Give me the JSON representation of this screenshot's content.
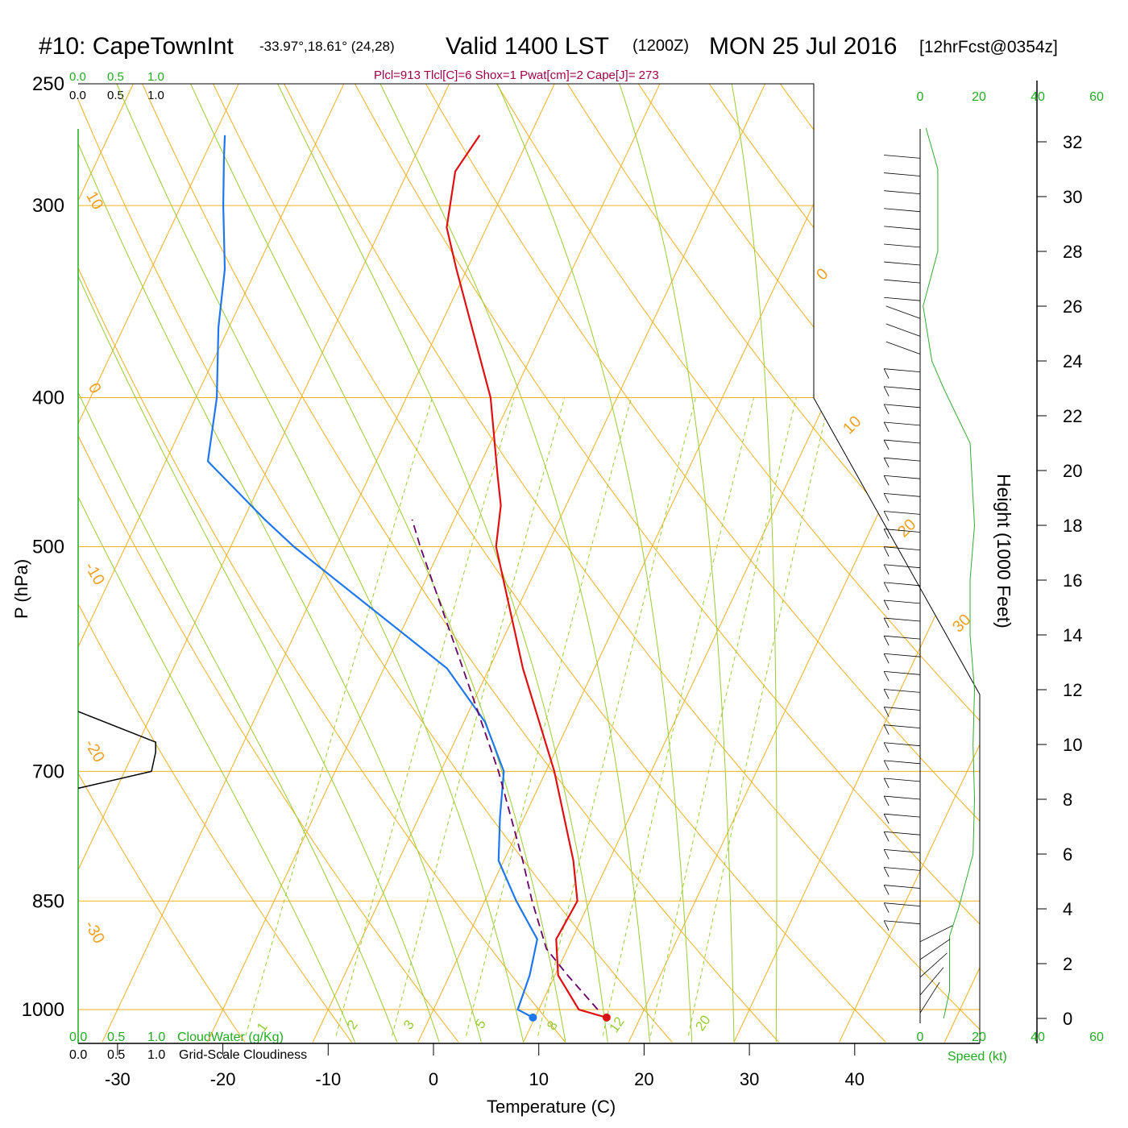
{
  "header": {
    "station": "#10: CapeTownInt",
    "coords": "-33.97°,18.61° (24,28)",
    "valid": "Valid 1400 LST",
    "zulu": "(1200Z)",
    "date": "MON 25 Jul 2016",
    "fcst": "[12hrFcst@0354z]"
  },
  "params": "Plcl=913 Tlcl[C]=6 Shox=1 Pwat[cm]=2 Cape[J]= 273",
  "left_scale": {
    "top_green": [
      "0.0",
      "0.5",
      "1.0"
    ],
    "top_black": [
      "0.0",
      "0.5",
      "1.0"
    ],
    "bottom_green": [
      "0.0",
      "0.5",
      "1.0"
    ],
    "bottom_black": [
      "0.0",
      "0.5",
      "1.0"
    ],
    "cloudwater_label": "CloudWater (g/Kg)",
    "cloudiness_label": "Grid-Scale Cloudiness"
  },
  "speed_scale": {
    "ticks": [
      "0",
      "20",
      "40",
      "60"
    ],
    "label": "Speed (kt)"
  },
  "colors": {
    "isobar": "#f0b020",
    "isotherm": "#f0b020",
    "dry_adiabat": "#f0b020",
    "moist_adiabat": "#99cc33",
    "mixing_ratio": "#99cc33",
    "temperature": "#dd1111",
    "dewpoint": "#1f77ee",
    "parcel": "#660066",
    "speed": "#33aa33"
  },
  "chart_data": {
    "type": "skew-t",
    "xlabel": "Temperature (C)",
    "ylabel": "P (hPa)",
    "y2label": "Height (1000 Feet)",
    "x_ticks": [
      -30,
      -20,
      -10,
      0,
      10,
      20,
      30,
      40
    ],
    "pressure_ticks": [
      250,
      300,
      400,
      500,
      700,
      850,
      1000
    ],
    "height_ticks": [
      0,
      2,
      4,
      6,
      8,
      10,
      12,
      14,
      16,
      18,
      20,
      22,
      24,
      26,
      28,
      30,
      32
    ],
    "isotherm_labels": [
      "10",
      "0",
      "-10",
      "-20",
      "-30",
      "0",
      "10",
      "20",
      "30"
    ],
    "mixing_ratio_labels": [
      "1",
      "2",
      "3",
      "5",
      "8",
      "12",
      "20"
    ],
    "temperature_profile": [
      {
        "p": 1012,
        "t": 16.8
      },
      {
        "p": 1000,
        "t": 13.8
      },
      {
        "p": 950,
        "t": 10.3
      },
      {
        "p": 900,
        "t": 8.5
      },
      {
        "p": 850,
        "t": 8.8
      },
      {
        "p": 800,
        "t": 6.6
      },
      {
        "p": 700,
        "t": 0.8
      },
      {
        "p": 600,
        "t": -6.8
      },
      {
        "p": 500,
        "t": -14.8
      },
      {
        "p": 470,
        "t": -16.2
      },
      {
        "p": 450,
        "t": -17.8
      },
      {
        "p": 400,
        "t": -22.0
      },
      {
        "p": 330,
        "t": -31.0
      },
      {
        "p": 310,
        "t": -33.8
      },
      {
        "p": 285,
        "t": -35.5
      },
      {
        "p": 270,
        "t": -34.8
      }
    ],
    "dewpoint_profile": [
      {
        "p": 1012,
        "t": 9.8
      },
      {
        "p": 1000,
        "t": 8.0
      },
      {
        "p": 950,
        "t": 7.6
      },
      {
        "p": 900,
        "t": 6.7
      },
      {
        "p": 850,
        "t": 3.0
      },
      {
        "p": 800,
        "t": -0.5
      },
      {
        "p": 750,
        "t": -2.3
      },
      {
        "p": 700,
        "t": -4.0
      },
      {
        "p": 650,
        "t": -8.0
      },
      {
        "p": 600,
        "t": -14.0
      },
      {
        "p": 500,
        "t": -34.0
      },
      {
        "p": 480,
        "t": -38.0
      },
      {
        "p": 440,
        "t": -46.0
      },
      {
        "p": 400,
        "t": -48.0
      },
      {
        "p": 360,
        "t": -51.0
      },
      {
        "p": 330,
        "t": -53.0
      },
      {
        "p": 300,
        "t": -56.0
      },
      {
        "p": 280,
        "t": -58.0
      },
      {
        "p": 270,
        "t": -59.0
      }
    ],
    "parcel_profile": [
      {
        "p": 1000,
        "t": 15.6
      },
      {
        "p": 950,
        "t": 11.2
      },
      {
        "p": 913,
        "t": 8.0
      },
      {
        "p": 850,
        "t": 4.5
      },
      {
        "p": 800,
        "t": 1.8
      },
      {
        "p": 700,
        "t": -4.5
      },
      {
        "p": 600,
        "t": -12.5
      },
      {
        "p": 500,
        "t": -22.0
      },
      {
        "p": 480,
        "t": -24.0
      }
    ],
    "surface_markers": {
      "temperature": 16.8,
      "dewpoint": 9.8
    },
    "cloudiness": [
      {
        "p": 640,
        "v": 0.0
      },
      {
        "p": 670,
        "v": 0.74
      },
      {
        "p": 680,
        "v": 0.74
      },
      {
        "p": 700,
        "v": 0.7
      },
      {
        "p": 718,
        "v": 0.0
      }
    ],
    "speed_profile": [
      {
        "h": 0,
        "s": 8
      },
      {
        "h": 1,
        "s": 10
      },
      {
        "h": 3,
        "s": 10
      },
      {
        "h": 4,
        "s": 13
      },
      {
        "h": 6,
        "s": 18
      },
      {
        "h": 8,
        "s": 18.5
      },
      {
        "h": 10,
        "s": 18
      },
      {
        "h": 12,
        "s": 18.5
      },
      {
        "h": 14,
        "s": 17
      },
      {
        "h": 16,
        "s": 17
      },
      {
        "h": 18,
        "s": 18.5
      },
      {
        "h": 21,
        "s": 17
      },
      {
        "h": 23,
        "s": 8
      },
      {
        "h": 24,
        "s": 4
      },
      {
        "h": 26,
        "s": 1
      },
      {
        "h": 28,
        "s": 6
      },
      {
        "h": 30,
        "s": 6
      },
      {
        "h": 31,
        "s": 6
      },
      {
        "h": 32.5,
        "s": 2
      }
    ]
  }
}
